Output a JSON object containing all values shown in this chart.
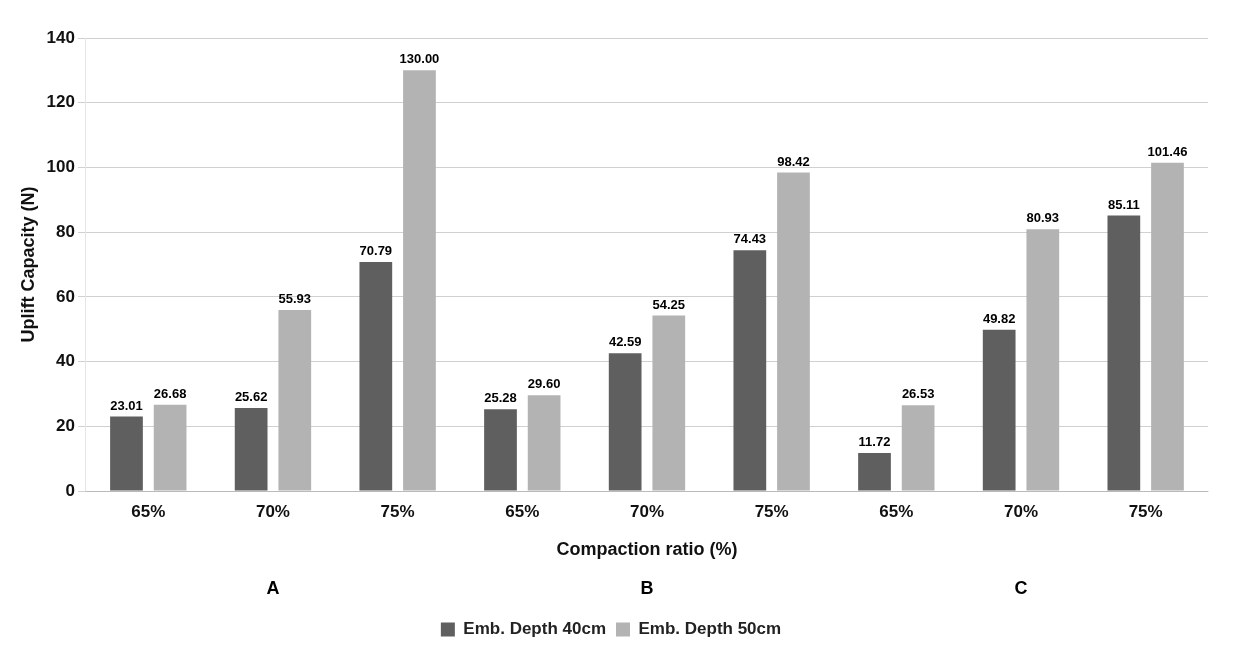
{
  "chart_data": {
    "type": "bar",
    "xlabel": "Compaction ratio (%)",
    "ylabel": "Uplift Capacity (N)",
    "categories": [
      "65%",
      "70%",
      "75%",
      "65%",
      "70%",
      "75%",
      "65%",
      "70%",
      "75%"
    ],
    "series": [
      {
        "name": "Emb. Depth 40cm",
        "color": "#5f5f5f",
        "values": [
          23.01,
          25.62,
          70.79,
          25.28,
          42.59,
          74.43,
          11.72,
          49.82,
          85.11
        ],
        "value_labels": [
          "23.01",
          "25.62",
          "70.79",
          "25.28",
          "42.59",
          "74.43",
          "11.72",
          "49.82",
          "85.11"
        ]
      },
      {
        "name": "Emb. Depth 50cm",
        "color": "#b3b3b3",
        "values": [
          26.68,
          55.93,
          130.0,
          29.6,
          54.25,
          98.42,
          26.53,
          80.93,
          101.46
        ],
        "value_labels": [
          "26.68",
          "55.93",
          "130.00",
          "29.60",
          "54.25",
          "98.42",
          "26.53",
          "80.93",
          "101.46"
        ]
      }
    ],
    "annotations": [
      "A",
      "B",
      "C"
    ],
    "ylim": [
      0,
      140
    ],
    "yticks": [
      0,
      20,
      40,
      60,
      80,
      100,
      120,
      140
    ],
    "grid": "y",
    "legend": "bottom"
  }
}
